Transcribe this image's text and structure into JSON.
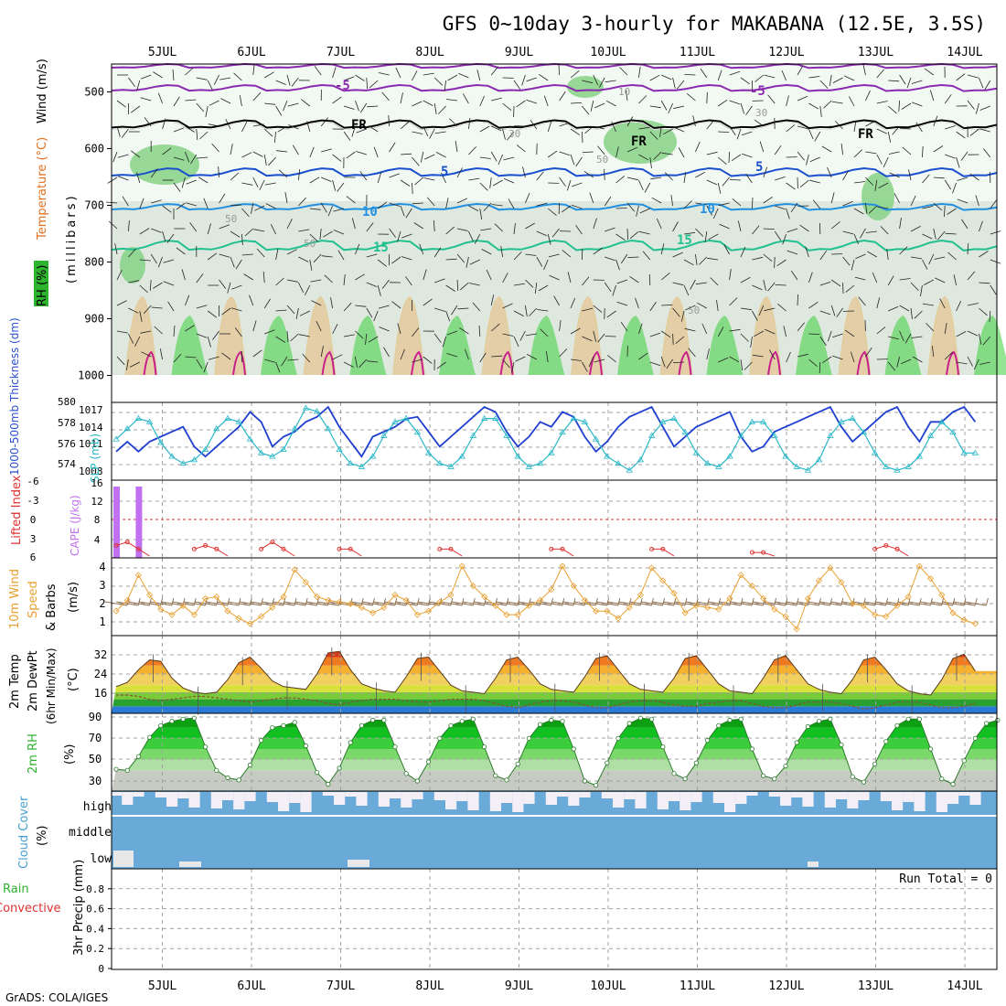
{
  "title": "GFS 0~10day 3-hourly for MAKABANA (12.5E, 3.5S)",
  "credit": "GrADS: COLA/IGES",
  "run_total": "Run Total = 0",
  "dates": [
    "5JUL",
    "6JUL",
    "7JUL",
    "8JUL",
    "9JUL",
    "10JUL",
    "11JUL",
    "12JUL",
    "13JUL",
    "14JUL"
  ],
  "colors": {
    "frame": "#000000",
    "grid": "#a0a0a0",
    "thickness": "#1f3fd0",
    "slp": "#2ab7c7",
    "lifted_index": "#e03030",
    "cape": "#c070f0",
    "wind": "#e8a030",
    "barb": "#8b6a4a",
    "dewpoint": "#8a5030",
    "rh_line": "#2a7a2a",
    "cloud": "#6aaad8",
    "cloud_clear": "#f4eff6"
  },
  "panels": {
    "profile": {
      "ylabel_rh": "RH (%)",
      "ylabel_temp": "Temperature (°C)",
      "ylabel_wind": "Wind (m/s)",
      "ylabel_mb": "(millibars)",
      "ticks": [
        "500",
        "600",
        "700",
        "800",
        "900",
        "1000"
      ],
      "contour_labels": [
        "-5",
        "FR",
        "FR",
        "FR",
        "-5",
        "5",
        "5",
        "10",
        "10",
        "15",
        "15",
        "10",
        "30",
        "30",
        "50",
        "50",
        "50",
        "50"
      ]
    },
    "slp": {
      "ylabel_left": "1000-500mb Thickness (dm)",
      "ylabel_right": "SLP (mb)",
      "ticks_left": [
        "580",
        "578",
        "576",
        "574"
      ],
      "ticks_right": [
        "1017",
        "1014",
        "1011",
        "1008"
      ]
    },
    "cape": {
      "ylabel_left": "Lifted Index",
      "ylabel_right": "CAPE (J/kg)",
      "ticks_left": [
        "-6",
        "-3",
        "0",
        "3",
        "6"
      ],
      "ticks_right": [
        "16",
        "12",
        "8",
        "4"
      ]
    },
    "wind10": {
      "ylabel_1": "10m Wind",
      "ylabel_2": "Speed",
      "ylabel_3": "& Barbs",
      "ylabel_4": "(m/s)",
      "ticks": [
        "4",
        "3",
        "2",
        "1"
      ]
    },
    "temp2m": {
      "ylabel_1": "2m Temp",
      "ylabel_2": "2m DewPt",
      "ylabel_3": "(6hr Min/Max)",
      "ylabel_4": "(°C)",
      "ticks": [
        "32",
        "24",
        "16"
      ]
    },
    "rh2m": {
      "ylabel_1": "2m RH",
      "ylabel_2": "(%)",
      "ticks": [
        "90",
        "70",
        "50",
        "30"
      ]
    },
    "cloud": {
      "ylabel_1": "Cloud Cover",
      "ylabel_2": "(%)",
      "levels": [
        "high",
        "middle",
        "low"
      ]
    },
    "precip": {
      "ylabel_1": "Total / Rain",
      "ylabel_2": "Convective",
      "ylabel_3": "3hr Precip (mm)",
      "ticks": [
        "0.8",
        "0.6",
        "0.4",
        "0.2",
        "0"
      ]
    }
  },
  "chart_data": {
    "type": "line",
    "x_start": "4JUL 15Z",
    "step_hours": 3,
    "thickness_dm": [
      575.5,
      576.5,
      575.5,
      576.5,
      577.0,
      577.5,
      578.0,
      576.0,
      575.0,
      576.0,
      577.0,
      578.0,
      579.5,
      578.5,
      576.0,
      577.0,
      577.5,
      578.5,
      579.0,
      580.0,
      578.0,
      576.5,
      575.0,
      577.0,
      577.5,
      578.0,
      578.8,
      579.0,
      577.5,
      576.0,
      577.0,
      578.0,
      579.0,
      580.0,
      579.5,
      577.5,
      576.0,
      577.0,
      578.5,
      578.0,
      579.5,
      579.0,
      577.0,
      575.5,
      576.5,
      578.0,
      579.0,
      579.5,
      580.0,
      578.0,
      576.0,
      577.0,
      578.0,
      578.5,
      579.0,
      579.5,
      577.0,
      575.5,
      576.0,
      577.5,
      578.0,
      578.5,
      579.0,
      579.5,
      580.0,
      578.0,
      576.5,
      577.5,
      578.5,
      579.5,
      580.0,
      578.0,
      576.5,
      578.5,
      578.5,
      579.5,
      580.0,
      578.5
    ],
    "slp_mb": [
      1013.0,
      1014.5,
      1016.0,
      1015.5,
      1012.5,
      1010.5,
      1009.5,
      1010.0,
      1011.5,
      1014.5,
      1016.0,
      1015.5,
      1013.0,
      1011.0,
      1010.5,
      1011.5,
      1014.5,
      1017.5,
      1017.0,
      1014.5,
      1011.5,
      1009.5,
      1009.0,
      1010.5,
      1013.5,
      1015.5,
      1016.0,
      1014.0,
      1011.0,
      1009.5,
      1009.0,
      1010.5,
      1013.5,
      1016.0,
      1016.0,
      1013.5,
      1010.5,
      1009.0,
      1009.5,
      1011.0,
      1014.0,
      1016.0,
      1015.5,
      1013.0,
      1010.5,
      1009.5,
      1008.5,
      1010.0,
      1013.5,
      1015.5,
      1016.0,
      1014.0,
      1011.0,
      1009.5,
      1009.0,
      1010.5,
      1013.5,
      1015.5,
      1015.5,
      1013.5,
      1010.5,
      1009.0,
      1008.5,
      1010.0,
      1013.5,
      1015.5,
      1016.0,
      1014.0,
      1011.0,
      1009.0,
      1008.5,
      1009.0,
      1010.5,
      1013.5,
      1015.5,
      1014.0,
      1011.0,
      1011.0
    ],
    "lifted_index": [
      4.5,
      4.0,
      5.0,
      6,
      6,
      6,
      6,
      5.0,
      4.5,
      5.0,
      6,
      6,
      6,
      5.0,
      4.0,
      5.0,
      6,
      6,
      6,
      6,
      5.0,
      5.0,
      6,
      6,
      6,
      6,
      6,
      6,
      6,
      5.0,
      5.0,
      6,
      6,
      6,
      6,
      6,
      6,
      6,
      6,
      5.0,
      5.0,
      6,
      6,
      6,
      6,
      6,
      6,
      6,
      5.0,
      5.0,
      6,
      6,
      6,
      6,
      6,
      6,
      6,
      5.5,
      5.5,
      6,
      6,
      6,
      6,
      6,
      6,
      6,
      6,
      6,
      5.0,
      4.5,
      5.0,
      6,
      6,
      6,
      6,
      6,
      6,
      6
    ],
    "cape": [
      16,
      0,
      16,
      0,
      0,
      0,
      0,
      0,
      0,
      0,
      0,
      0,
      0,
      0,
      0,
      0,
      0,
      0,
      0,
      0,
      0,
      0,
      0,
      0,
      0,
      0,
      0,
      0,
      0,
      0,
      0,
      0,
      0,
      0,
      0,
      0,
      0,
      0,
      0,
      0,
      0,
      0,
      0,
      0,
      0,
      0,
      0,
      0,
      0,
      0,
      0,
      0,
      0,
      0,
      0,
      0,
      0,
      0,
      0,
      0,
      0,
      0,
      0,
      0,
      0,
      0,
      0,
      0,
      0,
      0,
      0,
      0,
      0,
      0,
      0,
      0,
      0,
      0
    ],
    "wind10m_ms": [
      1.6,
      2.2,
      3.6,
      2.5,
      1.7,
      1.4,
      1.9,
      1.4,
      2.3,
      2.4,
      1.6,
      1.2,
      0.9,
      1.3,
      1.8,
      2.4,
      3.9,
      3.2,
      2.4,
      2.2,
      2.1,
      2.0,
      1.8,
      1.5,
      1.8,
      2.5,
      2.2,
      1.4,
      1.6,
      2.1,
      2.5,
      4.1,
      3.0,
      2.4,
      1.9,
      1.4,
      1.4,
      1.9,
      2.2,
      2.8,
      4.1,
      3.0,
      2.2,
      1.6,
      1.6,
      1.2,
      1.8,
      2.5,
      4.0,
      3.3,
      2.6,
      1.5,
      1.9,
      1.8,
      1.7,
      2.3,
      3.6,
      3.0,
      2.3,
      1.7,
      1.3,
      0.6,
      2.3,
      3.3,
      4.0,
      3.2,
      2.0,
      1.9,
      1.4,
      1.3,
      1.9,
      2.4,
      4.1,
      3.4,
      2.5,
      1.5,
      1.1,
      0.9
    ],
    "temp2m_c": [
      21.5,
      23.0,
      27.5,
      31.0,
      30.5,
      24.5,
      21.0,
      19.5,
      19.0,
      19.5,
      24.0,
      30.0,
      32.0,
      28.0,
      23.5,
      21.5,
      21.0,
      20.5,
      26.0,
      33.5,
      34.0,
      27.5,
      22.5,
      21.0,
      20.0,
      19.5,
      25.0,
      31.5,
      32.0,
      27.0,
      22.0,
      20.0,
      19.5,
      19.0,
      24.5,
      31.0,
      32.0,
      27.5,
      22.5,
      20.5,
      20.0,
      19.5,
      25.0,
      31.5,
      32.5,
      27.5,
      22.5,
      20.5,
      20.0,
      19.5,
      24.5,
      31.5,
      32.5,
      27.5,
      22.5,
      20.0,
      19.5,
      19.0,
      24.5,
      31.0,
      32.5,
      27.5,
      22.5,
      20.5,
      19.5,
      19.0,
      24.0,
      31.0,
      32.0,
      27.5,
      22.5,
      20.0,
      19.0,
      18.5,
      24.0,
      31.5,
      33.0,
      27.0
    ],
    "dewpt2m_c": [
      18.5,
      18.5,
      18.0,
      17.0,
      16.5,
      17.0,
      17.5,
      18.0,
      18.0,
      17.5,
      17.0,
      16.5,
      16.0,
      16.5,
      17.0,
      17.5,
      17.5,
      17.0,
      16.5,
      15.5,
      15.0,
      16.0,
      16.5,
      17.0,
      17.0,
      17.0,
      16.5,
      16.0,
      16.0,
      16.5,
      17.0,
      17.0,
      17.0,
      16.5,
      15.5,
      14.5,
      14.0,
      15.0,
      16.0,
      16.5,
      16.5,
      16.0,
      15.0,
      14.0,
      14.0,
      15.0,
      16.0,
      16.5,
      16.5,
      16.0,
      15.0,
      14.5,
      14.5,
      15.5,
      16.0,
      16.5,
      16.5,
      15.5,
      14.5,
      14.0,
      14.0,
      15.0,
      16.0,
      16.0,
      16.0,
      15.5,
      14.5,
      13.5,
      14.0,
      15.0,
      16.0,
      16.0,
      16.0,
      15.0,
      14.0,
      14.0,
      14.5,
      15.5
    ],
    "rh2m_pct": [
      41,
      40,
      53,
      71,
      82,
      86,
      88,
      89,
      62,
      40,
      33,
      31,
      45,
      68,
      80,
      82,
      85,
      63,
      38,
      27,
      42,
      66,
      82,
      87,
      87,
      62,
      37,
      30,
      48,
      70,
      82,
      86,
      88,
      62,
      35,
      31,
      46,
      70,
      83,
      87,
      86,
      60,
      30,
      26,
      47,
      70,
      84,
      89,
      88,
      62,
      37,
      32,
      47,
      68,
      82,
      87,
      88,
      60,
      35,
      32,
      44,
      66,
      81,
      86,
      88,
      64,
      34,
      29,
      46,
      67,
      82,
      88,
      88,
      60,
      32,
      27,
      49,
      70,
      84,
      87
    ],
    "precip_mm": [
      0,
      0,
      0,
      0,
      0,
      0,
      0,
      0,
      0,
      0,
      0,
      0,
      0,
      0,
      0,
      0,
      0,
      0,
      0,
      0
    ],
    "ylim_thickness": [
      573,
      580
    ],
    "ylim_slp": [
      1008,
      1018
    ],
    "ylim_li": [
      -6,
      6
    ],
    "ylim_cape": [
      0,
      16
    ],
    "ylim_wind": [
      0.5,
      4.5
    ],
    "ylim_temp": [
      12,
      38
    ],
    "ylim_rh": [
      25,
      92
    ],
    "ylim_precip": [
      0,
      1
    ]
  }
}
